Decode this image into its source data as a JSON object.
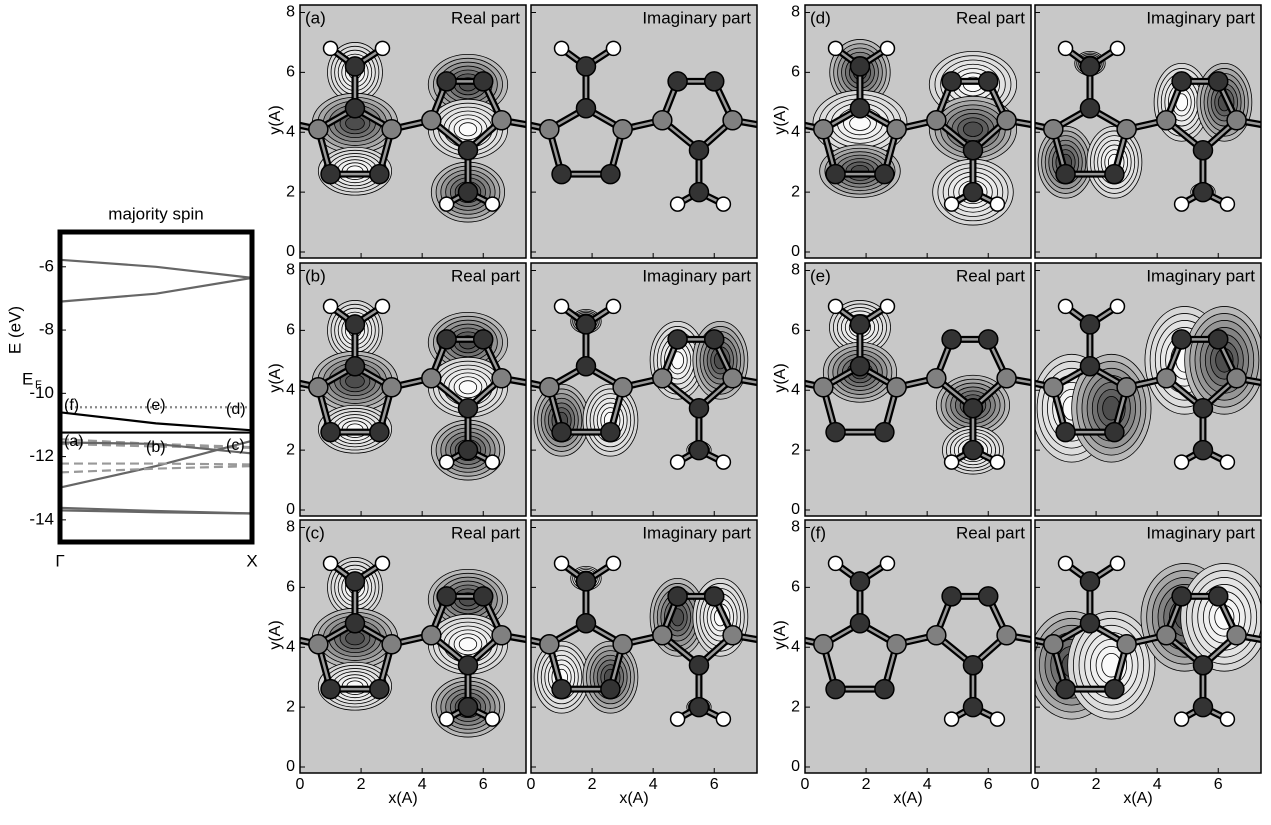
{
  "chart_data": [
    {
      "type": "line",
      "title": "majority spin",
      "ylabel": "E (eV)",
      "x": [
        0,
        0.5,
        1
      ],
      "xlim": [
        0,
        1
      ],
      "xticks": [
        {
          "value": 0,
          "label": "Γ"
        },
        {
          "value": 1,
          "label": "X"
        }
      ],
      "ylim": [
        -14.7,
        -4.9
      ],
      "yticks": [
        -14,
        -12,
        -10,
        -8,
        -6
      ],
      "series": [
        {
          "color": "#666666",
          "style": "solid",
          "values": [
            -5.78,
            -6.0,
            -6.35
          ]
        },
        {
          "color": "#666666",
          "style": "solid",
          "values": [
            -7.1,
            -6.85,
            -6.35
          ]
        },
        {
          "color": "#888888",
          "style": "dotted",
          "values": [
            -10.44,
            -10.44,
            -10.44
          ]
        },
        {
          "color": "#000000",
          "style": "solid",
          "values": [
            -10.6,
            -10.95,
            -11.17
          ]
        },
        {
          "color": "#000000",
          "style": "solid",
          "values": [
            -11.24,
            -11.24,
            -11.24
          ]
        },
        {
          "color": "#999999",
          "style": "dashed",
          "values": [
            -11.45,
            -11.6,
            -11.7
          ]
        },
        {
          "color": "#999999",
          "style": "dashed",
          "values": [
            -11.6,
            -11.68,
            -11.72
          ]
        },
        {
          "color": "#666666",
          "style": "solid",
          "values": [
            -11.55,
            -11.6,
            -11.9
          ]
        },
        {
          "color": "#666666",
          "style": "solid",
          "values": [
            -12.98,
            -12.3,
            -11.5
          ]
        },
        {
          "color": "#999999",
          "style": "dashed",
          "values": [
            -12.22,
            -12.22,
            -12.25
          ]
        },
        {
          "color": "#999999",
          "style": "dashed",
          "values": [
            -12.5,
            -12.38,
            -12.3
          ]
        },
        {
          "color": "#666666",
          "style": "solid",
          "values": [
            -13.62,
            -13.72,
            -13.8
          ]
        },
        {
          "color": "#666666",
          "style": "solid",
          "values": [
            -13.7,
            -13.76,
            -13.8
          ]
        }
      ],
      "annotations": [
        "E",
        "F",
        "(f)",
        "(e)",
        "(d)",
        "(a)",
        "(b)",
        "(c)"
      ]
    },
    {
      "type": "contour",
      "label": "(a)",
      "part": "Real part",
      "ylabel": "y(A)",
      "xlim": [
        0,
        7.4
      ],
      "ylim": [
        -0.2,
        8.25
      ],
      "xticks": [
        0,
        2,
        4,
        6
      ],
      "yticks": [
        0,
        2,
        4,
        6,
        8
      ]
    },
    {
      "type": "contour",
      "part": "Imaginary part",
      "xlim": [
        0,
        7.4
      ],
      "ylim": [
        -0.2,
        8.25
      ],
      "xticks": [
        0,
        2,
        4,
        6
      ],
      "yticks": [
        0,
        2,
        4,
        6,
        8
      ]
    },
    {
      "type": "contour",
      "label": "(d)",
      "part": "Real part",
      "ylabel": "y(A)",
      "xlim": [
        0,
        7.4
      ],
      "ylim": [
        -0.2,
        8.25
      ],
      "xticks": [
        0,
        2,
        4,
        6
      ],
      "yticks": [
        0,
        2,
        4,
        6,
        8
      ]
    },
    {
      "type": "contour",
      "part": "Imaginary part",
      "xlim": [
        0,
        7.4
      ],
      "ylim": [
        -0.2,
        8.25
      ],
      "xticks": [
        0,
        2,
        4,
        6
      ],
      "yticks": [
        0,
        2,
        4,
        6,
        8
      ]
    },
    {
      "type": "contour",
      "label": "(b)",
      "part": "Real part",
      "ylabel": "y(A)",
      "xlim": [
        0,
        7.4
      ],
      "ylim": [
        -0.2,
        8.25
      ],
      "xticks": [
        0,
        2,
        4,
        6
      ],
      "yticks": [
        0,
        2,
        4,
        6,
        8
      ]
    },
    {
      "type": "contour",
      "part": "Imaginary part",
      "xlim": [
        0,
        7.4
      ],
      "ylim": [
        -0.2,
        8.25
      ],
      "xticks": [
        0,
        2,
        4,
        6
      ],
      "yticks": [
        0,
        2,
        4,
        6,
        8
      ]
    },
    {
      "type": "contour",
      "label": "(e)",
      "part": "Real part",
      "ylabel": "y(A)",
      "xlim": [
        0,
        7.4
      ],
      "ylim": [
        -0.2,
        8.25
      ],
      "xticks": [
        0,
        2,
        4,
        6
      ],
      "yticks": [
        0,
        2,
        4,
        6,
        8
      ]
    },
    {
      "type": "contour",
      "part": "Imaginary part",
      "xlim": [
        0,
        7.4
      ],
      "ylim": [
        -0.2,
        8.25
      ],
      "xticks": [
        0,
        2,
        4,
        6
      ],
      "yticks": [
        0,
        2,
        4,
        6,
        8
      ]
    },
    {
      "type": "contour",
      "label": "(c)",
      "part": "Real part",
      "xlabel": "x(A)",
      "ylabel": "y(A)",
      "xlim": [
        0,
        7.4
      ],
      "ylim": [
        -0.2,
        8.25
      ],
      "xticks": [
        0,
        2,
        4,
        6
      ],
      "yticks": [
        0,
        2,
        4,
        6,
        8
      ]
    },
    {
      "type": "contour",
      "part": "Imaginary part",
      "xlabel": "x(A)",
      "xlim": [
        0,
        7.4
      ],
      "ylim": [
        -0.2,
        8.25
      ],
      "xticks": [
        0,
        2,
        4,
        6
      ],
      "yticks": [
        0,
        2,
        4,
        6,
        8
      ]
    },
    {
      "type": "contour",
      "label": "(f)",
      "part": "Real part",
      "xlabel": "x(A)",
      "ylabel": "y(A)",
      "xlim": [
        0,
        7.4
      ],
      "ylim": [
        -0.2,
        8.25
      ],
      "xticks": [
        0,
        2,
        4,
        6
      ],
      "yticks": [
        0,
        2,
        4,
        6,
        8
      ]
    },
    {
      "type": "contour",
      "part": "Imaginary part",
      "xlabel": "x(A)",
      "xlim": [
        0,
        7.4
      ],
      "ylim": [
        -0.2,
        8.25
      ],
      "xticks": [
        0,
        2,
        4,
        6
      ],
      "yticks": [
        0,
        2,
        4,
        6,
        8
      ]
    }
  ]
}
